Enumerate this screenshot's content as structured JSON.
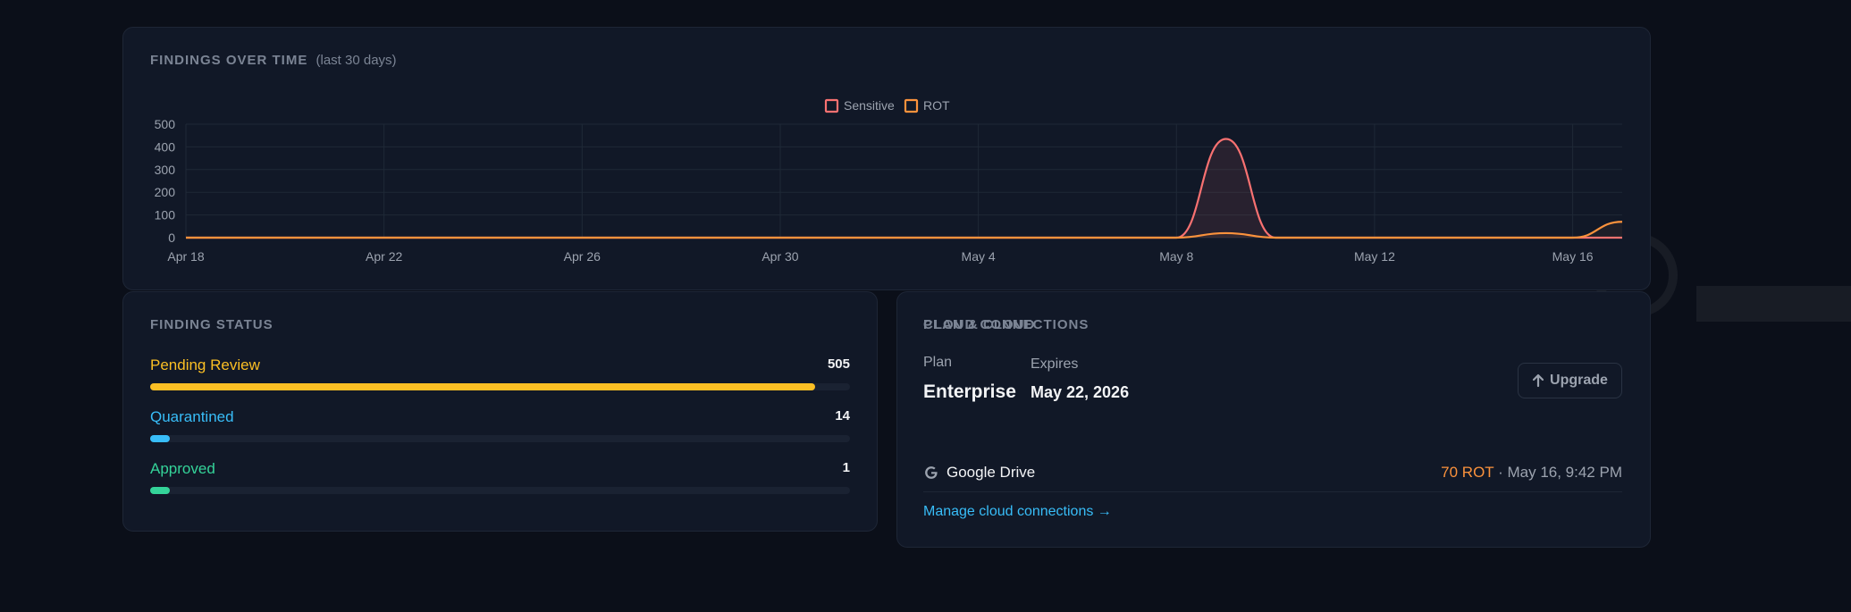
{
  "colors": {
    "background": "#0b0f19",
    "card": "#111827",
    "sensitive": "#f87171",
    "rot": "#fb923c",
    "pending": "#fbbf24",
    "quarantined": "#38bdf8",
    "approved": "#34d399"
  },
  "findings": {
    "title": "Findings over time",
    "subtitle": "(last 30 days)"
  },
  "chart_data": {
    "type": "line",
    "title": "",
    "xlabel": "",
    "ylabel": "",
    "ylim": [
      0,
      500
    ],
    "yticks": [
      0,
      100,
      200,
      300,
      400,
      500
    ],
    "x": [
      "Apr 18",
      "Apr 19",
      "Apr 20",
      "Apr 21",
      "Apr 22",
      "Apr 23",
      "Apr 24",
      "Apr 25",
      "Apr 26",
      "Apr 27",
      "Apr 28",
      "Apr 29",
      "Apr 30",
      "May 1",
      "May 2",
      "May 3",
      "May 4",
      "May 5",
      "May 6",
      "May 7",
      "May 8",
      "May 9",
      "May 10",
      "May 11",
      "May 12",
      "May 13",
      "May 14",
      "May 15",
      "May 16",
      "May 17"
    ],
    "xtick_labels": [
      "Apr 18",
      "Apr 22",
      "Apr 26",
      "Apr 30",
      "May 4",
      "May 8",
      "May 12",
      "May 16"
    ],
    "grid": true,
    "legend_position": "top-center",
    "series": [
      {
        "name": "Sensitive",
        "color": "#f87171",
        "values": [
          0,
          0,
          0,
          0,
          0,
          0,
          0,
          0,
          0,
          0,
          0,
          0,
          0,
          0,
          0,
          0,
          0,
          0,
          0,
          0,
          0,
          435,
          0,
          0,
          0,
          0,
          0,
          0,
          0,
          0
        ]
      },
      {
        "name": "ROT",
        "color": "#fb923c",
        "values": [
          0,
          0,
          0,
          0,
          0,
          0,
          0,
          0,
          0,
          0,
          0,
          0,
          0,
          0,
          0,
          0,
          0,
          0,
          0,
          0,
          0,
          20,
          0,
          0,
          0,
          0,
          0,
          0,
          0,
          70
        ]
      }
    ]
  },
  "status": {
    "title": "Finding status",
    "max": 505,
    "items": [
      {
        "label": "Pending Review",
        "count": "505",
        "value": 505,
        "color": "#fbbf24"
      },
      {
        "label": "Quarantined",
        "count": "14",
        "value": 14,
        "color": "#38bdf8"
      },
      {
        "label": "Approved",
        "count": "1",
        "value": 1,
        "color": "#34d399"
      }
    ]
  },
  "plan": {
    "title": "Plan & Cloud",
    "plan_label": "Plan",
    "plan_value": "Enterprise",
    "expires_label": "Expires",
    "expires_value": "May 22, 2026",
    "upgrade_label": "Upgrade",
    "cloud_title": "Cloud connections",
    "connection": {
      "icon": "google-icon",
      "name": "Google Drive",
      "rot": "70 ROT",
      "separator": " · ",
      "timestamp": "May 16, 9:42 PM"
    },
    "manage_link": "Manage cloud connections →"
  }
}
